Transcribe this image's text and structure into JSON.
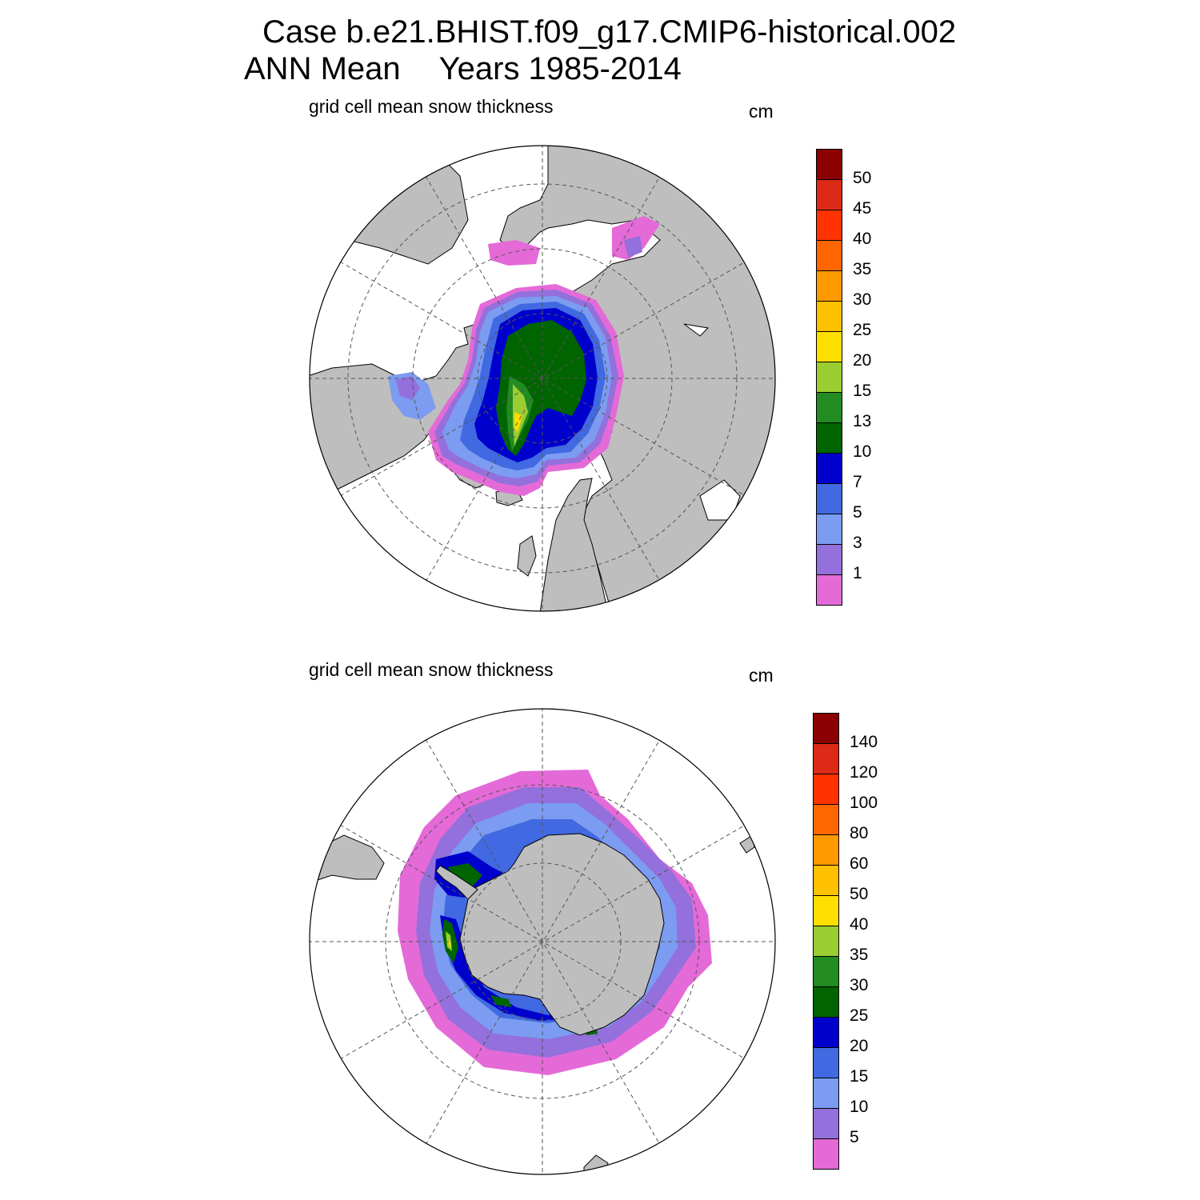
{
  "header": {
    "case_line": "Case b.e21.BHIST.f09_g17.CMIP6-historical.002",
    "season": "ANN Mean",
    "years": "Years 1985-2014"
  },
  "panels": [
    {
      "id": "nh",
      "title": "grid cell mean snow thickness",
      "units": "cm",
      "hemisphere": "north",
      "colorbar": {
        "colors": [
          "#e46ad8",
          "#9370db",
          "#7b9cf0",
          "#4169e1",
          "#0000cd",
          "#006400",
          "#228b22",
          "#9acd32",
          "#ffdf00",
          "#ffc000",
          "#ff9900",
          "#ff6600",
          "#ff3300",
          "#dc2a17",
          "#8b0000"
        ],
        "labels": [
          "1",
          "3",
          "5",
          "7",
          "10",
          "13",
          "15",
          "20",
          "25",
          "30",
          "35",
          "40",
          "45",
          "50"
        ]
      }
    },
    {
      "id": "sh",
      "title": "grid cell mean snow thickness",
      "units": "cm",
      "hemisphere": "south",
      "colorbar": {
        "colors": [
          "#e46ad8",
          "#9370db",
          "#7b9cf0",
          "#4169e1",
          "#0000cd",
          "#006400",
          "#228b22",
          "#9acd32",
          "#ffdf00",
          "#ffc000",
          "#ff9900",
          "#ff6600",
          "#ff3300",
          "#dc2a17",
          "#8b0000"
        ],
        "labels": [
          "5",
          "10",
          "15",
          "20",
          "25",
          "30",
          "35",
          "40",
          "50",
          "60",
          "80",
          "100",
          "120",
          "140"
        ]
      }
    }
  ],
  "colors": {
    "land": "#bebebe",
    "ocean": "#ffffff",
    "grid": "#555555"
  }
}
